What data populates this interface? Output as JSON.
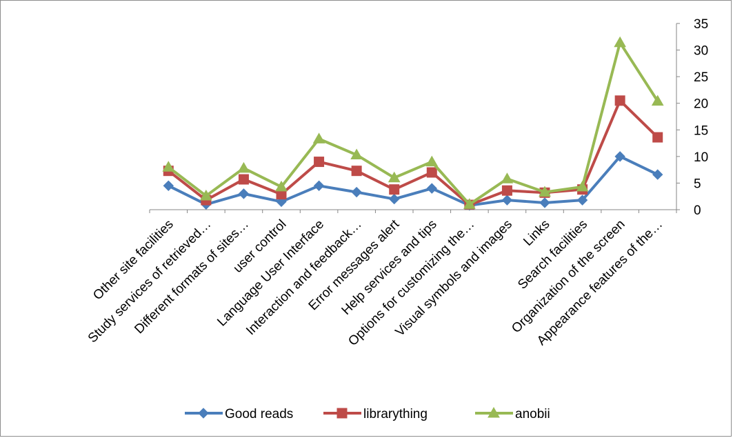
{
  "chart_data": {
    "type": "line",
    "categories": [
      "Other site facilities",
      "Study services of retrieved…",
      "Different formats of sites…",
      "user control",
      "Language User Interface",
      "Interaction and feedback…",
      "Error messages alert",
      "Help services and tips",
      "Options for customizing the…",
      "Visual symbols and images",
      "Links",
      "Search facilities",
      "Organization of  the screen",
      "Appearance features of the…"
    ],
    "series": [
      {
        "name": "Good reads",
        "color": "#4a7ebb",
        "marker": "diamond",
        "values": [
          4.5,
          1,
          3,
          1.5,
          4.5,
          3.3,
          2,
          4,
          0.8,
          1.8,
          1.3,
          1.8,
          10,
          6.6
        ]
      },
      {
        "name": "librarything",
        "color": "#be4b48",
        "marker": "square",
        "values": [
          7.3,
          1.8,
          5.7,
          2.9,
          9,
          7.3,
          3.8,
          7,
          0.9,
          3.6,
          3.2,
          3.8,
          20.5,
          13.6
        ]
      },
      {
        "name": "anobii",
        "color": "#98b954",
        "marker": "triangle",
        "values": [
          8,
          2.6,
          7.8,
          4.3,
          13.3,
          10.3,
          6,
          9,
          1,
          5.8,
          3.3,
          4.3,
          31.4,
          20.4
        ]
      }
    ],
    "y_axis": {
      "position": "right",
      "ylim": [
        0,
        35
      ],
      "ticks": [
        "0",
        "5",
        "10",
        "15",
        "20",
        "25",
        "30",
        "35"
      ]
    },
    "grid": false,
    "legend": "bottom",
    "title": "",
    "xlabel": "",
    "ylabel": ""
  }
}
